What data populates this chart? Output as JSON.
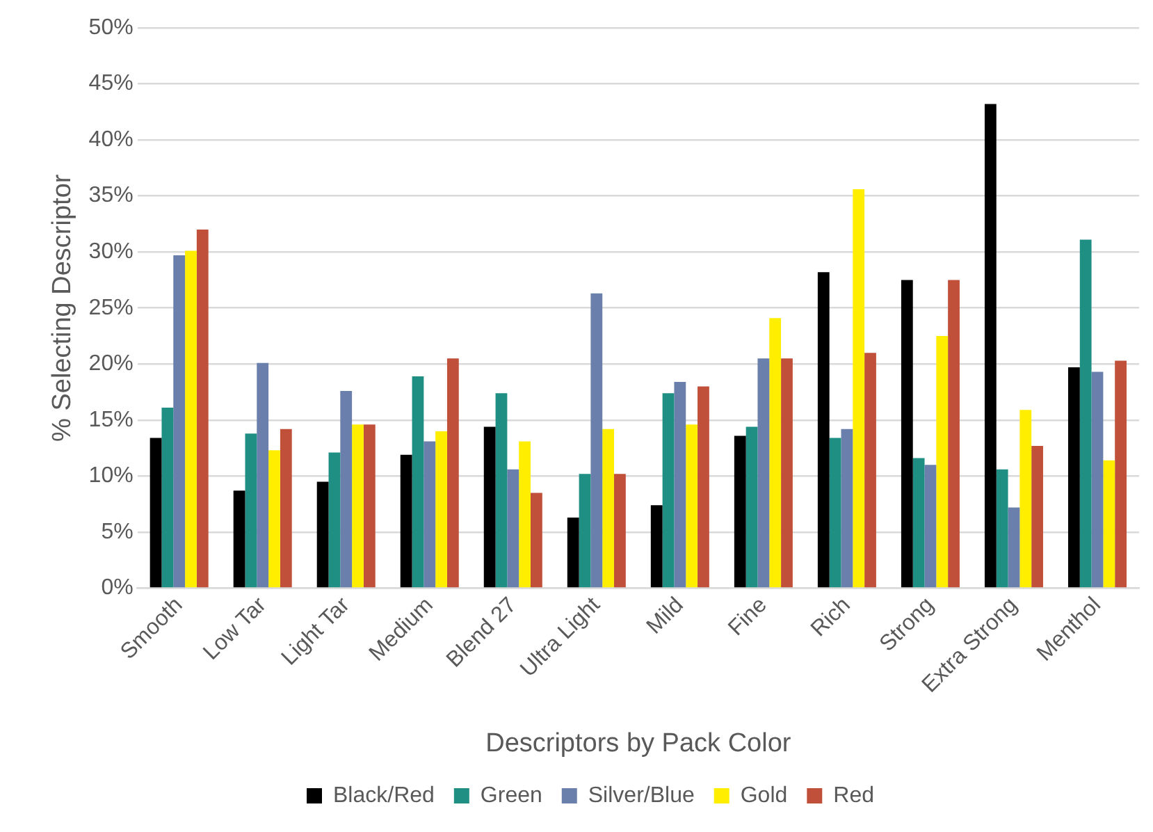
{
  "chart_data": {
    "type": "bar",
    "xlabel": "Descriptors by Pack Color",
    "ylabel": "% Selecting Descriptor",
    "categories": [
      "Smooth",
      "Low Tar",
      "Light Tar",
      "Medium",
      "Blend 27",
      "Ultra Light",
      "Mild",
      "Fine",
      "Rich",
      "Strong",
      "Extra Strong",
      "Menthol"
    ],
    "series": [
      {
        "name": "Black/Red",
        "color": "#000000",
        "values": [
          13.4,
          8.7,
          9.5,
          11.9,
          14.4,
          6.3,
          7.4,
          13.6,
          28.2,
          27.5,
          43.2,
          19.7
        ]
      },
      {
        "name": "Green",
        "color": "#1f8f83",
        "values": [
          16.1,
          13.8,
          12.1,
          18.9,
          17.4,
          10.2,
          17.4,
          14.4,
          13.4,
          11.6,
          10.6,
          31.1
        ]
      },
      {
        "name": "Silver/Blue",
        "color": "#6a7fab",
        "values": [
          29.7,
          20.1,
          17.6,
          13.1,
          10.6,
          26.3,
          18.4,
          20.5,
          14.2,
          11.0,
          7.2,
          19.3
        ]
      },
      {
        "name": "Gold",
        "color": "#ffee00",
        "values": [
          30.1,
          12.3,
          14.6,
          14.0,
          13.1,
          14.2,
          14.6,
          24.1,
          35.6,
          22.5,
          15.9,
          11.4
        ]
      },
      {
        "name": "Red",
        "color": "#c0503a",
        "values": [
          32.0,
          14.2,
          14.6,
          20.5,
          8.5,
          10.2,
          18.0,
          20.5,
          21.0,
          27.5,
          12.7,
          20.3
        ]
      }
    ],
    "ylim": [
      0,
      50
    ],
    "yticks": [
      {
        "value": 0,
        "label": "0%"
      },
      {
        "value": 5,
        "label": "5%"
      },
      {
        "value": 10,
        "label": "10%"
      },
      {
        "value": 15,
        "label": "15%"
      },
      {
        "value": 20,
        "label": "20%"
      },
      {
        "value": 25,
        "label": "25%"
      },
      {
        "value": 30,
        "label": "30%"
      },
      {
        "value": 35,
        "label": "35%"
      },
      {
        "value": 40,
        "label": "40%"
      },
      {
        "value": 45,
        "label": "45%"
      },
      {
        "value": 50,
        "label": "50%"
      }
    ],
    "grid": "y",
    "legend": "bottom"
  }
}
